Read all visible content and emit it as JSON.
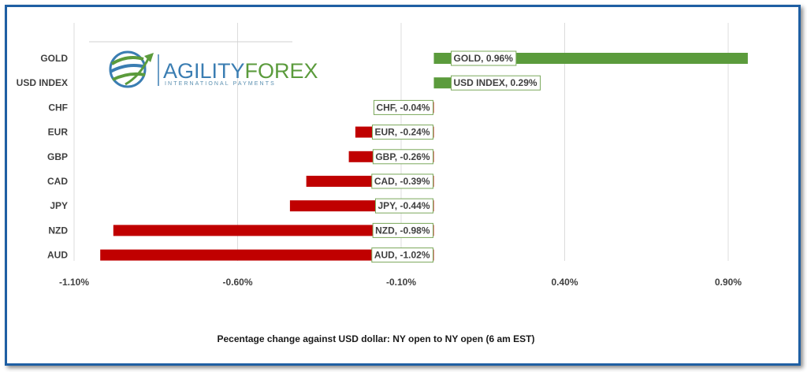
{
  "logo": {
    "part1": "AGILITY",
    "part2": "FOREX",
    "subtitle": "INTERNATIONAL PAYMENTS"
  },
  "colors": {
    "positive": "#5b9b3c",
    "negative": "#c00000",
    "frame": "#1f5fa3",
    "logo_blue": "#3a7db2",
    "logo_green": "#5b9b3c"
  },
  "chart_data": {
    "type": "bar",
    "orientation": "horizontal",
    "categories": [
      "GOLD",
      "USD INDEX",
      "CHF",
      "EUR",
      "GBP",
      "CAD",
      "JPY",
      "NZD",
      "AUD"
    ],
    "values": [
      0.96,
      0.29,
      -0.04,
      -0.24,
      -0.26,
      -0.39,
      -0.44,
      -0.98,
      -1.02
    ],
    "data_labels": [
      "GOLD, 0.96%",
      "USD INDEX, 0.29%",
      "CHF, -0.04%",
      "EUR, -0.24%",
      "GBP, -0.26%",
      "CAD, -0.39%",
      "JPY, -0.44%",
      "NZD, -0.98%",
      "AUD, -1.02%"
    ],
    "xticks": [
      "-1.10%",
      "-0.60%",
      "-0.10%",
      "0.40%",
      "0.90%"
    ],
    "xtick_values": [
      -1.1,
      -0.6,
      -0.1,
      0.4,
      0.9
    ],
    "xlim": [
      -1.1,
      1.05
    ],
    "grid": true,
    "xlabel": "Pecentage change against USD dollar:  NY open to NY open  (6 am EST)",
    "ylabel": "",
    "title": ""
  }
}
